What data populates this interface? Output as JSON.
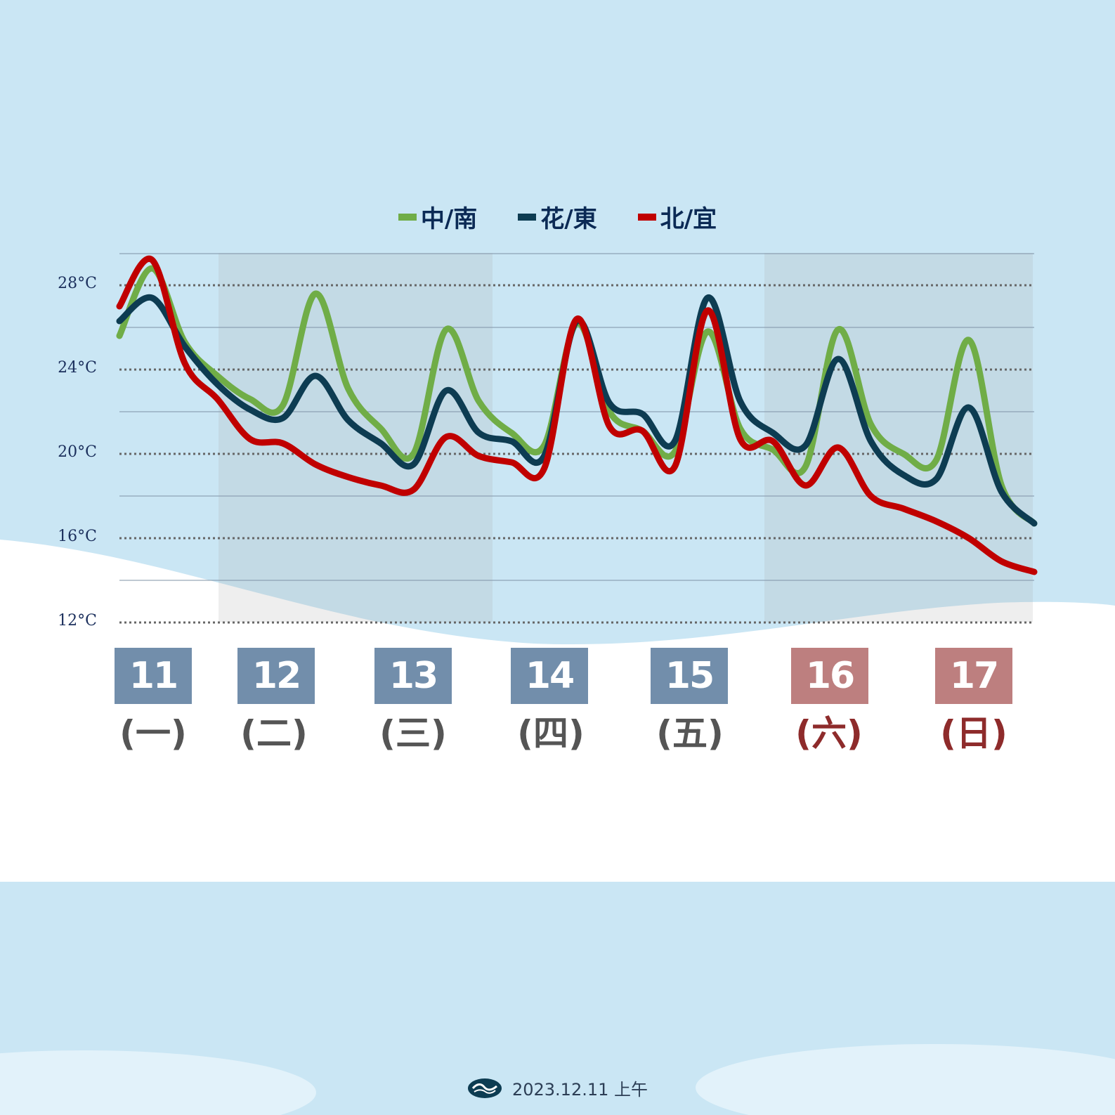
{
  "colors": {
    "background": "#cae6f4",
    "weekday_box": "#728eab",
    "weekend_box": "#bd7f7f",
    "weekday_text": "#555555",
    "weekend_text": "#8e2b2b",
    "axis_text": "#1b2f5c",
    "shade": "#aaaaaa"
  },
  "legend": [
    {
      "label": "中/南",
      "color": "#70ad47"
    },
    {
      "label": "花/東",
      "color": "#0d3c52"
    },
    {
      "label": "北/宜",
      "color": "#c00000"
    }
  ],
  "days": [
    {
      "date": "11",
      "weekday": "(一)",
      "weekend": false
    },
    {
      "date": "12",
      "weekday": "(二)",
      "weekend": false
    },
    {
      "date": "13",
      "weekday": "(三)",
      "weekend": false
    },
    {
      "date": "14",
      "weekday": "(四)",
      "weekend": false
    },
    {
      "date": "15",
      "weekday": "(五)",
      "weekend": false
    },
    {
      "date": "16",
      "weekday": "(六)",
      "weekend": true
    },
    {
      "date": "17",
      "weekday": "(日)",
      "weekend": true
    }
  ],
  "footer": {
    "icon": "cwa-logo-icon",
    "text": "2023.12.11  上午"
  },
  "chart_data": {
    "type": "line",
    "x": [
      0,
      1,
      2,
      3,
      4,
      5,
      6,
      7,
      8,
      9,
      10,
      11,
      12,
      13,
      14,
      15,
      16,
      17,
      18,
      19,
      20,
      21,
      22,
      23,
      24,
      25,
      26,
      27,
      28
    ],
    "xlabel": "",
    "ylabel": "",
    "ylim": [
      12,
      29.5
    ],
    "yticks": [
      12,
      16,
      20,
      24,
      28
    ],
    "ytick_labels": [
      "12°C",
      "16°C",
      "20°C",
      "24°C",
      "28°C"
    ],
    "grid": true,
    "legend_position": "top-center",
    "shaded_days": [
      "12",
      "13",
      "16",
      "17"
    ],
    "series": [
      {
        "name": "中/南",
        "color": "#70ad47",
        "values": [
          25.6,
          28.8,
          25.3,
          23.7,
          22.6,
          22.3,
          27.6,
          23.1,
          21.2,
          20.0,
          25.9,
          22.5,
          21.0,
          20.4,
          26.2,
          22.0,
          21.1,
          20.1,
          25.8,
          21.2,
          20.2,
          19.4,
          25.9,
          21.4,
          20.0,
          19.7,
          25.4,
          18.5,
          16.7
        ]
      },
      {
        "name": "花/東",
        "color": "#0d3c52",
        "values": [
          26.3,
          27.4,
          25.1,
          23.3,
          22.1,
          21.7,
          23.7,
          21.6,
          20.5,
          19.5,
          23.0,
          21.0,
          20.6,
          19.9,
          26.3,
          22.4,
          21.9,
          20.6,
          27.4,
          22.5,
          21.0,
          20.4,
          24.5,
          20.6,
          19.0,
          18.8,
          22.2,
          18.2,
          16.7
        ]
      },
      {
        "name": "北/宜",
        "color": "#c00000",
        "values": [
          27.0,
          29.2,
          24.3,
          22.6,
          20.7,
          20.5,
          19.5,
          18.9,
          18.5,
          18.3,
          20.8,
          19.9,
          19.6,
          19.3,
          26.4,
          21.3,
          21.1,
          19.4,
          26.8,
          20.7,
          20.6,
          18.5,
          20.3,
          18.0,
          17.4,
          16.8,
          16.0,
          14.9,
          14.4
        ]
      }
    ]
  }
}
